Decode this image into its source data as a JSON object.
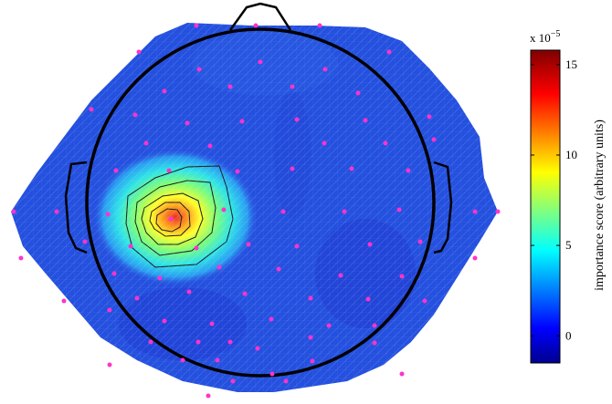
{
  "colorbar": {
    "exponent_base": "x 10",
    "exponent_power": "−5",
    "label": "importance score (arbitrary units)",
    "ticks": [
      {
        "value": 0,
        "label": "0"
      },
      {
        "value": 5,
        "label": "5"
      },
      {
        "value": 10,
        "label": "10"
      },
      {
        "value": 15,
        "label": "15"
      }
    ],
    "range": [
      -1.5,
      15.8
    ],
    "colormap": "jet",
    "colors": [
      "#00008f",
      "#0000ff",
      "#0080ff",
      "#00ffff",
      "#80ff80",
      "#ffff00",
      "#ff8000",
      "#ff0000",
      "#800000"
    ]
  },
  "topomap": {
    "hotspot": {
      "peak_value": 14.5,
      "location": "left temporal-central"
    },
    "background_value": 0.5,
    "head_outline_color": "#000000",
    "electrode_color": "#ff33cc",
    "contour_levels": [
      2,
      4,
      6,
      8,
      10,
      12
    ]
  }
}
